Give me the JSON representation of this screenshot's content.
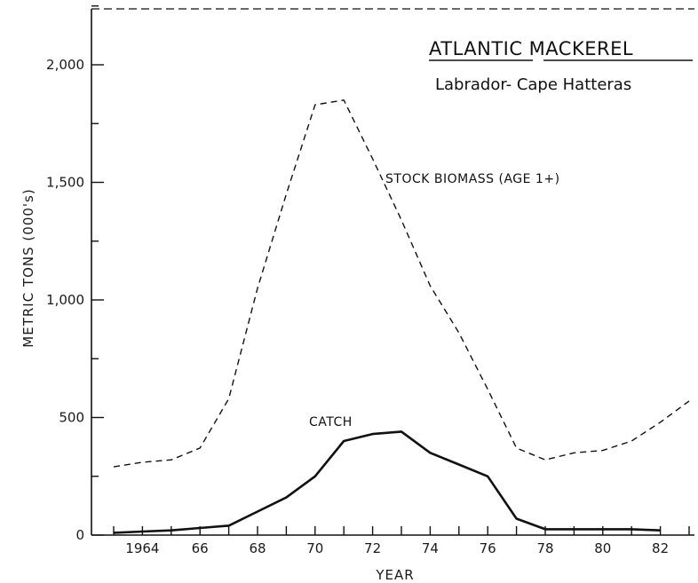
{
  "chart_data": {
    "type": "line",
    "title": "ATLANTIC MACKEREL",
    "subtitle": "Labrador- Cape Hatteras",
    "xlabel": "YEAR",
    "ylabel": "METRIC TONS (000's)",
    "xlim": [
      1963,
      1983
    ],
    "ylim": [
      0,
      2250
    ],
    "grid": false,
    "x_ticks": [
      1963,
      1964,
      1965,
      1966,
      1967,
      1968,
      1969,
      1970,
      1971,
      1972,
      1973,
      1974,
      1975,
      1976,
      1977,
      1978,
      1979,
      1980,
      1981,
      1982,
      1983
    ],
    "x_tick_labels": [
      {
        "x": 1964,
        "label": "1964"
      },
      {
        "x": 1966,
        "label": "66"
      },
      {
        "x": 1968,
        "label": "68"
      },
      {
        "x": 1970,
        "label": "70"
      },
      {
        "x": 1972,
        "label": "72"
      },
      {
        "x": 1974,
        "label": "74"
      },
      {
        "x": 1976,
        "label": "76"
      },
      {
        "x": 1978,
        "label": "78"
      },
      {
        "x": 1980,
        "label": "80"
      },
      {
        "x": 1982,
        "label": "82"
      }
    ],
    "y_ticks": [
      0,
      250,
      500,
      750,
      1000,
      1250,
      1500,
      1750,
      2000,
      2250
    ],
    "y_tick_labels": [
      {
        "y": 0,
        "label": "0"
      },
      {
        "y": 500,
        "label": "500"
      },
      {
        "y": 1000,
        "label": "1,000"
      },
      {
        "y": 1500,
        "label": "1,500"
      },
      {
        "y": 2000,
        "label": "2,000"
      }
    ],
    "series": [
      {
        "name": "STOCK BIOMASS (AGE 1+)",
        "style": "dashed",
        "x": [
          1963,
          1964,
          1965,
          1966,
          1967,
          1968,
          1969,
          1970,
          1971,
          1972,
          1973,
          1974,
          1975,
          1976,
          1977,
          1978,
          1979,
          1980,
          1981,
          1982,
          1983
        ],
        "values": [
          290,
          310,
          320,
          370,
          580,
          1050,
          1450,
          1830,
          1850,
          1600,
          1340,
          1060,
          860,
          620,
          370,
          320,
          350,
          360,
          400,
          480,
          570
        ]
      },
      {
        "name": "CATCH",
        "style": "solid",
        "x": [
          1963,
          1964,
          1965,
          1966,
          1967,
          1968,
          1969,
          1970,
          1971,
          1972,
          1973,
          1974,
          1975,
          1976,
          1977,
          1978,
          1979,
          1980,
          1981,
          1982
        ],
        "values": [
          10,
          15,
          20,
          30,
          40,
          100,
          160,
          250,
          400,
          430,
          440,
          350,
          300,
          250,
          70,
          25,
          25,
          25,
          25,
          20
        ]
      }
    ]
  }
}
